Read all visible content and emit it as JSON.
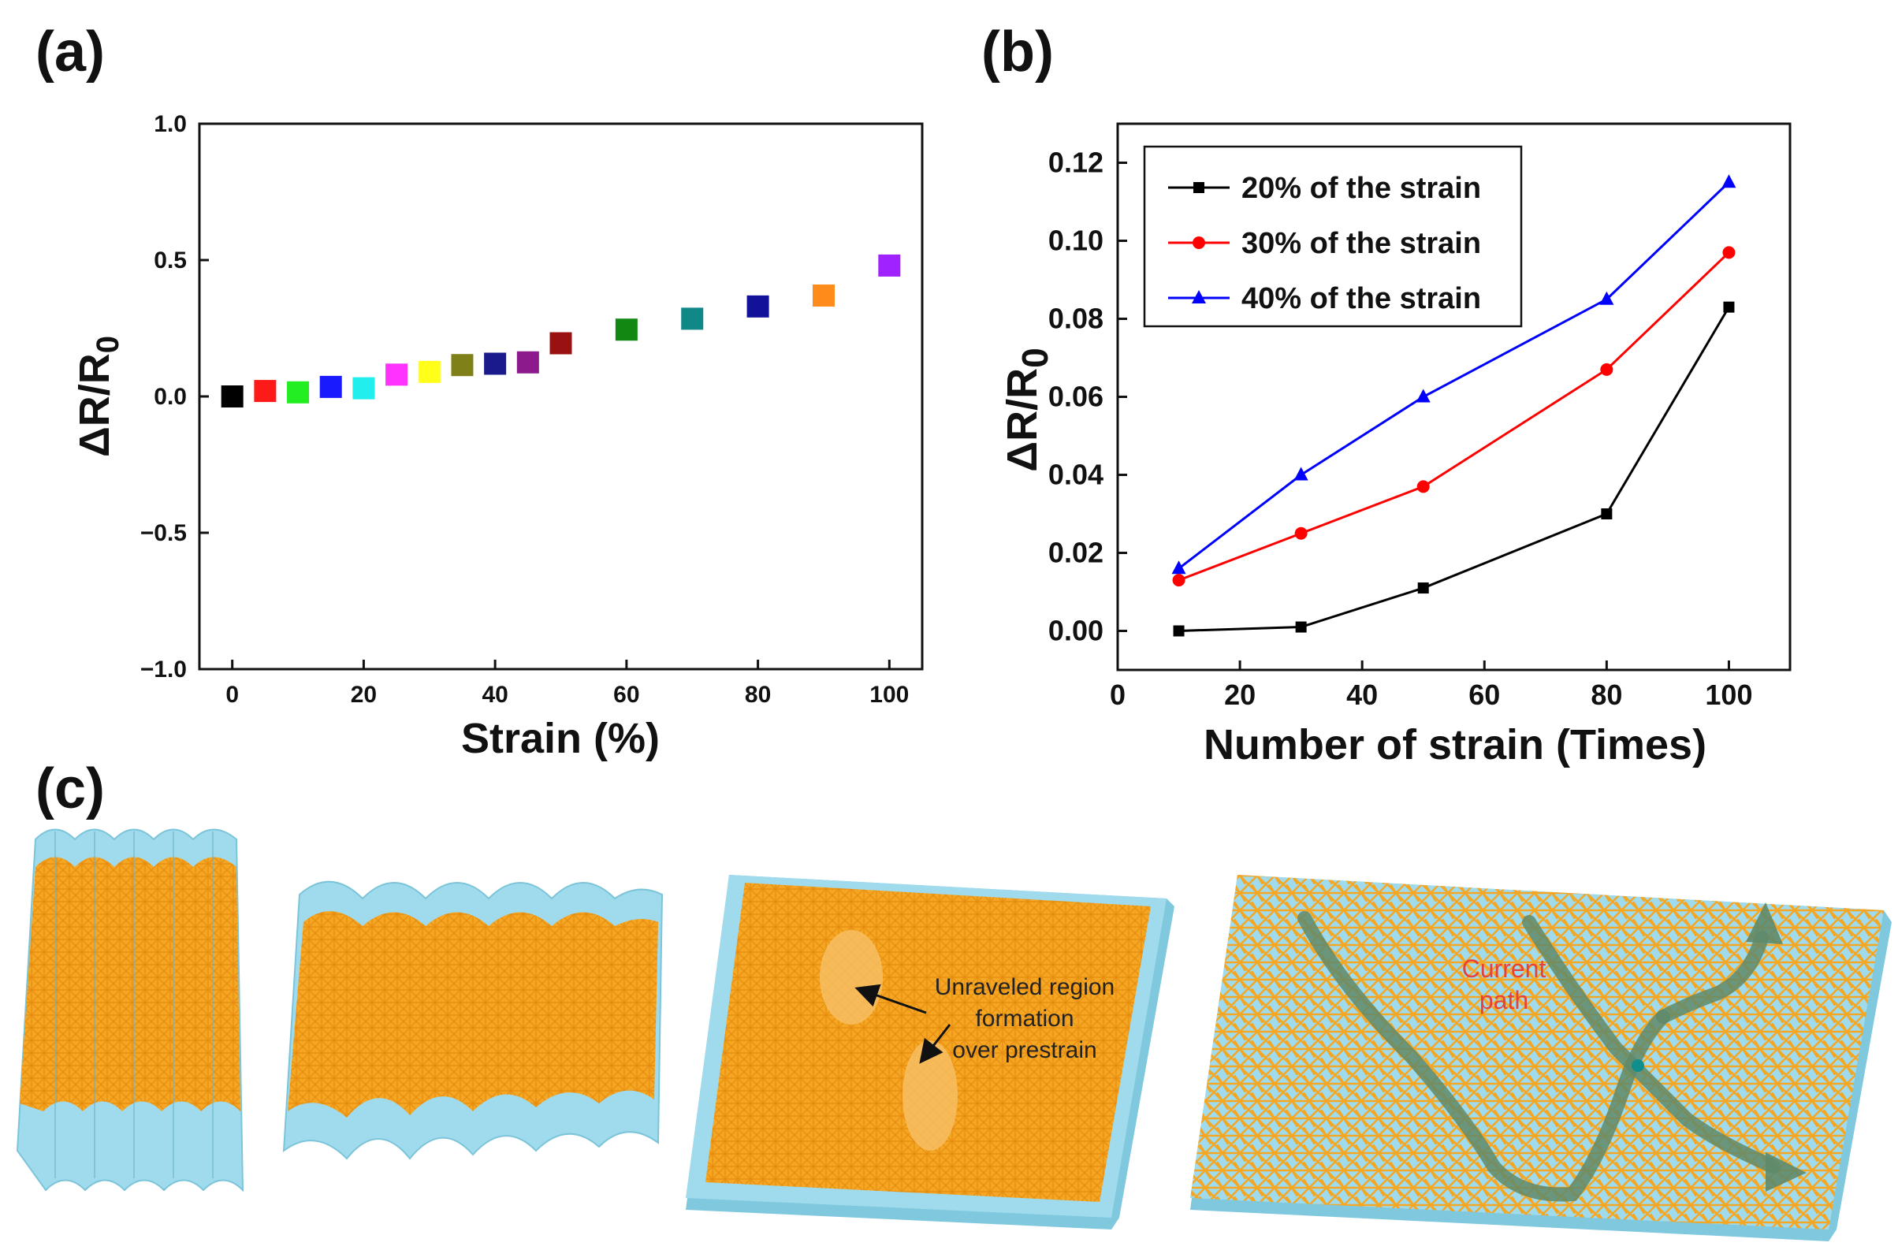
{
  "panel_labels": {
    "a": "(a)",
    "b": "(b)",
    "c": "(c)"
  },
  "chart_data": [
    {
      "type": "scatter",
      "panel": "(a)",
      "xlabel": "Strain (%)",
      "ylabel_main": "ΔR/R",
      "ylabel_sub": "0",
      "xlim": [
        -5,
        105
      ],
      "ylim": [
        -1.0,
        1.0
      ],
      "xticks": [
        0,
        20,
        40,
        60,
        80,
        100
      ],
      "yticks": [
        -1.0,
        -0.5,
        0.0,
        0.5,
        1.0
      ],
      "ytick_labels": [
        "−1.0",
        "−0.5",
        "0.0",
        "0.5",
        "1.0"
      ],
      "points": [
        {
          "x": 0,
          "y": 0.0,
          "color": "#000000"
        },
        {
          "x": 5,
          "y": 0.02,
          "color": "#ff1a1a"
        },
        {
          "x": 10,
          "y": 0.015,
          "color": "#22ee22"
        },
        {
          "x": 15,
          "y": 0.035,
          "color": "#1a1aff"
        },
        {
          "x": 20,
          "y": 0.03,
          "color": "#22eeee"
        },
        {
          "x": 25,
          "y": 0.08,
          "color": "#ff33ff"
        },
        {
          "x": 30,
          "y": 0.09,
          "color": "#ffff1a"
        },
        {
          "x": 35,
          "y": 0.115,
          "color": "#808019"
        },
        {
          "x": 40,
          "y": 0.12,
          "color": "#1a1a8c"
        },
        {
          "x": 45,
          "y": 0.125,
          "color": "#8c1a8c"
        },
        {
          "x": 50,
          "y": 0.195,
          "color": "#991111"
        },
        {
          "x": 60,
          "y": 0.245,
          "color": "#118811"
        },
        {
          "x": 70,
          "y": 0.285,
          "color": "#118888"
        },
        {
          "x": 80,
          "y": 0.33,
          "color": "#111199"
        },
        {
          "x": 90,
          "y": 0.37,
          "color": "#ff8c1a"
        },
        {
          "x": 100,
          "y": 0.48,
          "color": "#a022ff"
        }
      ]
    },
    {
      "type": "line",
      "panel": "(b)",
      "xlabel": "Number of strain (Times)",
      "ylabel_main": "ΔR/R",
      "ylabel_sub": "0",
      "xlim": [
        0,
        110
      ],
      "ylim": [
        -0.01,
        0.13
      ],
      "xticks": [
        0,
        20,
        40,
        60,
        80,
        100
      ],
      "yticks": [
        0.0,
        0.02,
        0.04,
        0.06,
        0.08,
        0.1,
        0.12
      ],
      "ytick_labels": [
        "0.00",
        "0.02",
        "0.04",
        "0.06",
        "0.08",
        "0.10",
        "0.12"
      ],
      "legend_position": "top-left",
      "series": [
        {
          "name": "20% of the strain",
          "color": "#000000",
          "marker": "square",
          "x": [
            10,
            30,
            50,
            80,
            100
          ],
          "values": [
            0.0,
            0.001,
            0.011,
            0.03,
            0.083
          ]
        },
        {
          "name": "30% of the strain",
          "color": "#ff0000",
          "marker": "circle",
          "x": [
            10,
            30,
            50,
            80,
            100
          ],
          "values": [
            0.013,
            0.025,
            0.037,
            0.067,
            0.097
          ]
        },
        {
          "name": "40% of the strain",
          "color": "#0000ff",
          "marker": "triangle",
          "x": [
            10,
            30,
            50,
            80,
            100
          ],
          "values": [
            0.016,
            0.04,
            0.06,
            0.085,
            0.115
          ]
        }
      ]
    }
  ],
  "illustration": {
    "annotation_lines": [
      "Unraveled region",
      "formation",
      "over prestrain"
    ],
    "current_path_lines": [
      "Current",
      "path"
    ],
    "colors": {
      "substrate": "#8fd3e8",
      "nanowire": "#f5a623",
      "path": "#5f8a6a"
    }
  }
}
